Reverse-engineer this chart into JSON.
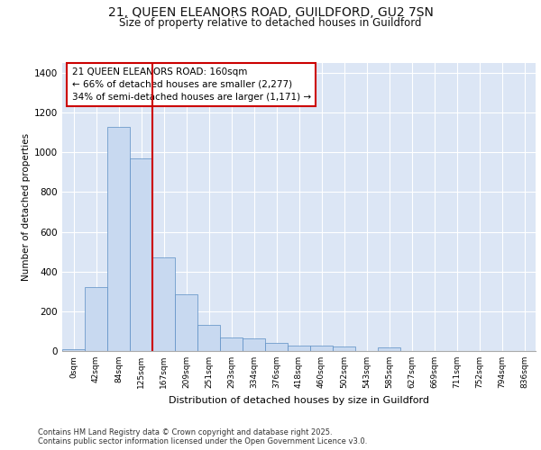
{
  "title_line1": "21, QUEEN ELEANORS ROAD, GUILDFORD, GU2 7SN",
  "title_line2": "Size of property relative to detached houses in Guildford",
  "xlabel": "Distribution of detached houses by size in Guildford",
  "ylabel": "Number of detached properties",
  "bar_color": "#c8d9f0",
  "bar_edge_color": "#5b8ec4",
  "vline_color": "#cc0000",
  "vline_x": 3.5,
  "annotation_text": "21 QUEEN ELEANORS ROAD: 160sqm\n← 66% of detached houses are smaller (2,277)\n34% of semi-detached houses are larger (1,171) →",
  "annotation_box_color": "#cc0000",
  "bins": [
    "0sqm",
    "42sqm",
    "84sqm",
    "125sqm",
    "167sqm",
    "209sqm",
    "251sqm",
    "293sqm",
    "334sqm",
    "376sqm",
    "418sqm",
    "460sqm",
    "502sqm",
    "543sqm",
    "585sqm",
    "627sqm",
    "669sqm",
    "711sqm",
    "752sqm",
    "794sqm",
    "836sqm"
  ],
  "values": [
    8,
    320,
    1130,
    970,
    470,
    285,
    130,
    70,
    65,
    40,
    25,
    25,
    22,
    0,
    20,
    0,
    0,
    0,
    0,
    0,
    0
  ],
  "ylim": [
    0,
    1450
  ],
  "yticks": [
    0,
    200,
    400,
    600,
    800,
    1000,
    1200,
    1400
  ],
  "background_color": "#dce6f5",
  "grid_color": "#ffffff",
  "fig_background": "#ffffff",
  "footer": "Contains HM Land Registry data © Crown copyright and database right 2025.\nContains public sector information licensed under the Open Government Licence v3.0."
}
